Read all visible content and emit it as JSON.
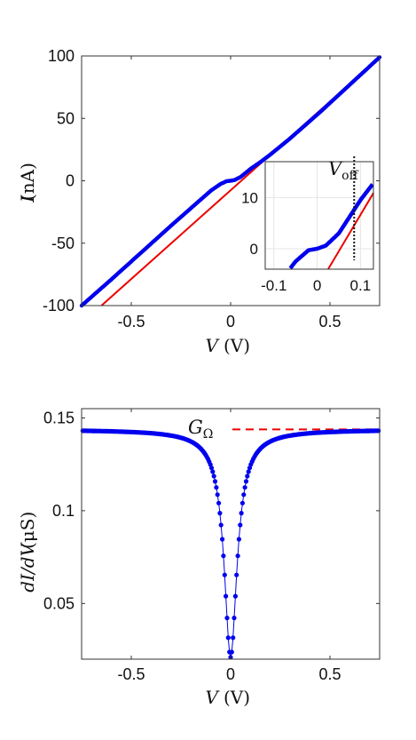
{
  "chart_data": [
    {
      "type": "line",
      "xlabel_var": "V",
      "xlabel_unit": "(V)",
      "ylabel_var": "I",
      "ylabel_unit": "(nA)",
      "xlim": [
        -0.75,
        0.75
      ],
      "ylim": [
        -100,
        100
      ],
      "xticks": [
        -0.5,
        0,
        0.5
      ],
      "xtick_labels": [
        "-0.5",
        "0",
        "0.5"
      ],
      "yticks": [
        -100,
        -50,
        0,
        50,
        100
      ],
      "ytick_labels": [
        "-100",
        "-50",
        "0",
        "50",
        "100"
      ],
      "grid": false,
      "series": [
        {
          "color": "#0000ee",
          "marker": "dot",
          "x": [
            -0.75,
            -0.6,
            -0.45,
            -0.3,
            -0.2,
            -0.1,
            -0.05,
            -0.02,
            0,
            0.02,
            0.05,
            0.1,
            0.15,
            0.2,
            0.3,
            0.45,
            0.6,
            0.75
          ],
          "y": [
            -100,
            -79,
            -57.5,
            -36,
            -22,
            -8,
            -2.5,
            -0.3,
            0,
            0.6,
            3,
            9.5,
            15,
            21,
            34,
            55,
            77,
            99
          ]
        },
        {
          "color": "#ee0000",
          "marker": "none",
          "x": [
            -0.65,
            0.75
          ],
          "y": [
            -100,
            99
          ]
        }
      ],
      "inset": {
        "xlim": [
          -0.12,
          0.13
        ],
        "ylim": [
          -4,
          17
        ],
        "xticks": [
          -0.1,
          0,
          0.1
        ],
        "xtick_labels": [
          "-0.1",
          "0",
          "0.1"
        ],
        "yticks": [
          0,
          10
        ],
        "ytick_labels": [
          "0",
          "10"
        ],
        "grid": true,
        "voff_x": 0.0855,
        "voff_label_main": "V",
        "voff_label_sub": "off"
      }
    },
    {
      "type": "scatter",
      "xlabel_var": "V",
      "xlabel_unit": "(V)",
      "ylabel_var": "dI/dV",
      "ylabel_unit": "(μS)",
      "xlim": [
        -0.75,
        0.75
      ],
      "ylim": [
        0.02,
        0.155
      ],
      "xticks": [
        -0.5,
        0,
        0.5
      ],
      "xtick_labels": [
        "-0.5",
        "0",
        "0.5"
      ],
      "yticks": [
        0.05,
        0.1,
        0.15
      ],
      "ytick_labels": [
        "0.05",
        "0.1",
        "0.15"
      ],
      "grid": false,
      "g_omega_value": 0.1438,
      "g_omega_label_main": "G",
      "g_omega_label_sub": "Ω",
      "series": [
        {
          "color": "#0000ee",
          "marker": "dot",
          "model": "G(V) = 0.1438 - 0.1228 / (1 + (V/0.036)^2)^0.85 (sampled every 0.006 V)"
        }
      ]
    }
  ]
}
